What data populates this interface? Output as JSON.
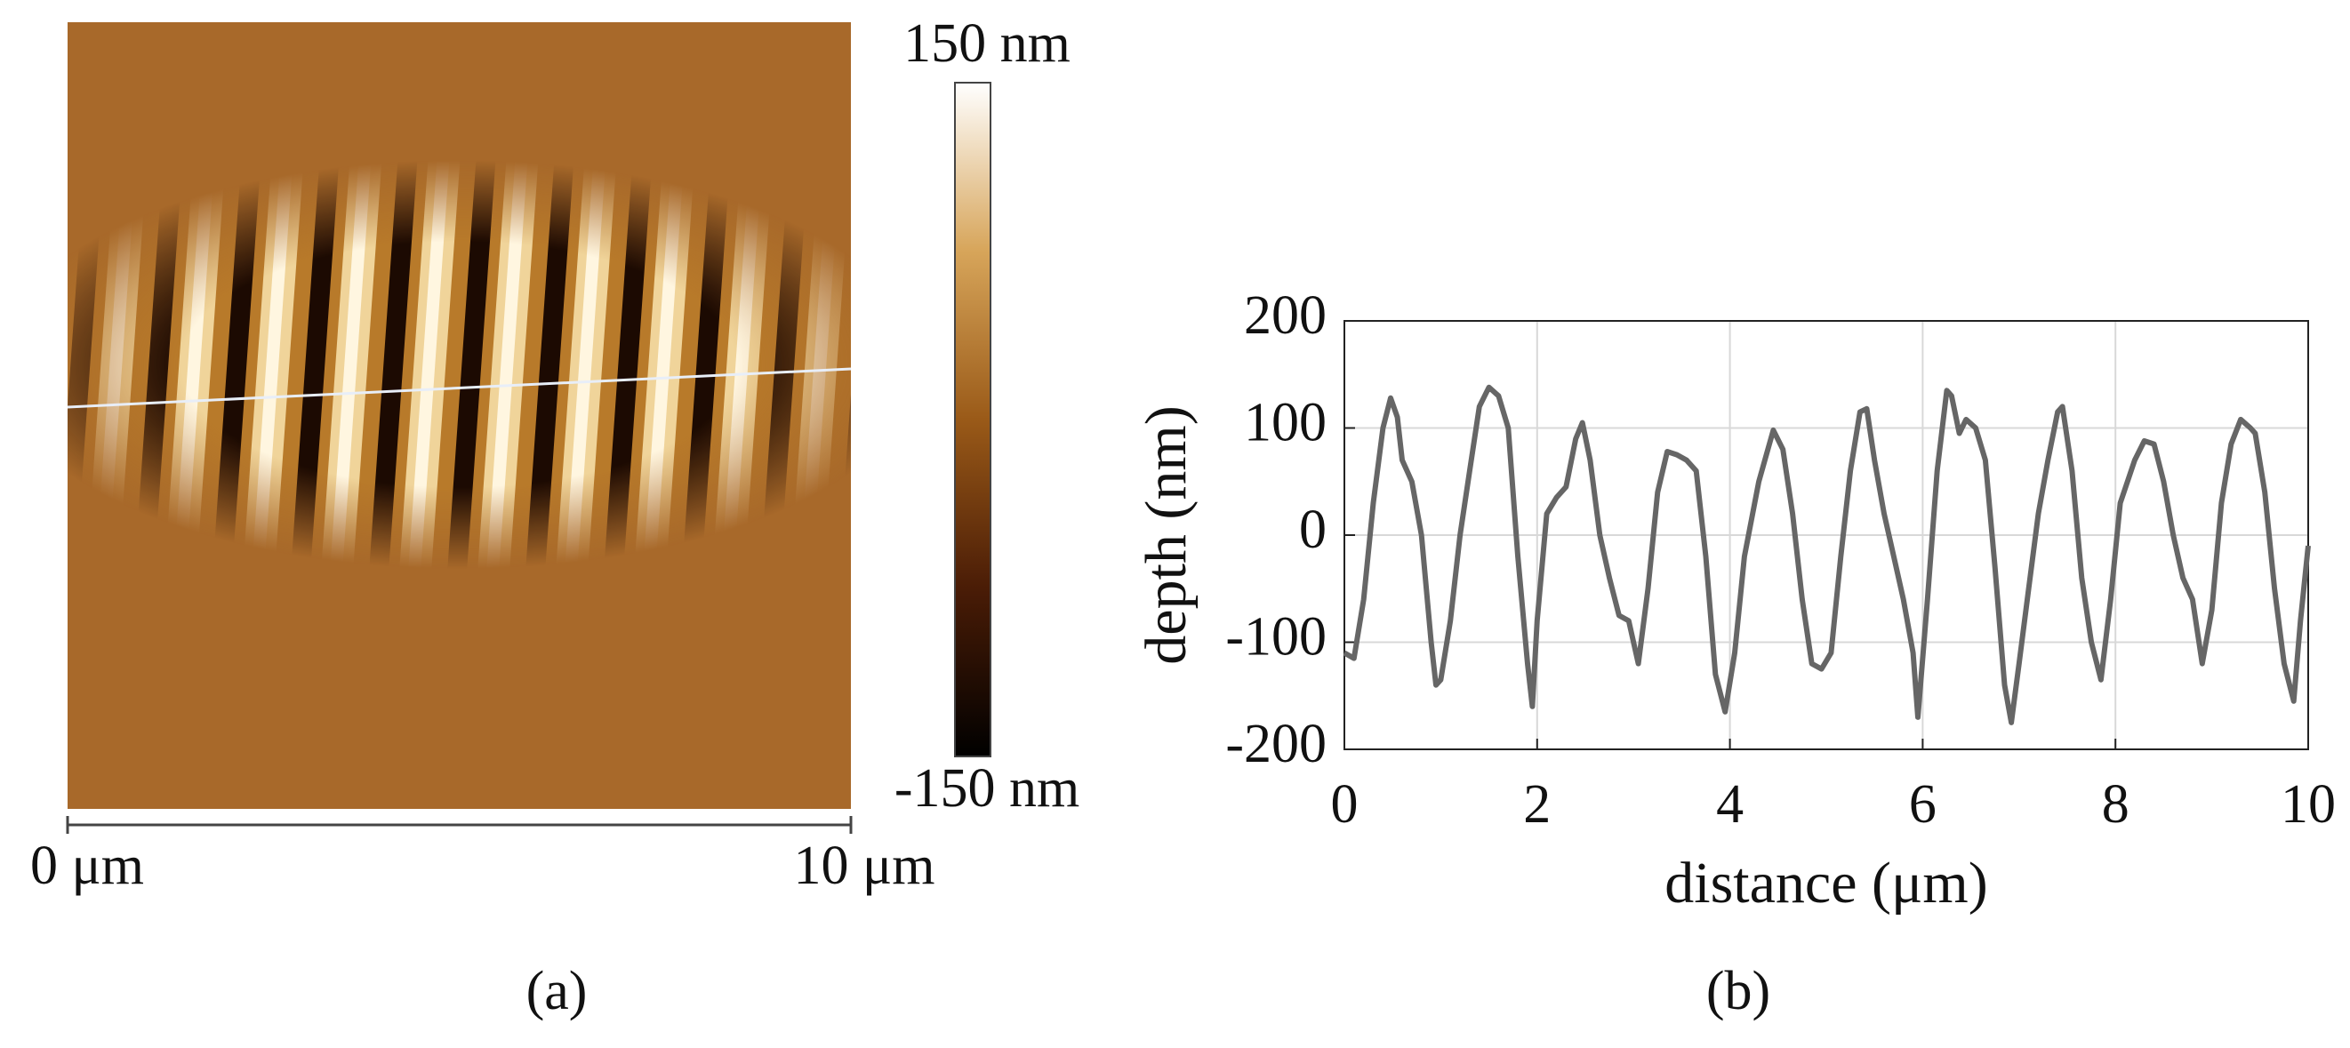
{
  "panel_a": {
    "colorbar_top": "150 nm",
    "colorbar_bottom": "-150 nm",
    "scale_start": "0 μm",
    "scale_end": "10 μm",
    "label": "(a)"
  },
  "chart_data": {
    "type": "line",
    "panel_label": "(b)",
    "xlabel": "distance (μm)",
    "ylabel": "depth (nm)",
    "xlim": [
      0,
      10
    ],
    "ylim": [
      -200,
      200
    ],
    "xticks": [
      0,
      2,
      4,
      6,
      8,
      10
    ],
    "yticks": [
      -200,
      -100,
      0,
      100,
      200
    ],
    "grid": true,
    "x": [
      0,
      0.1,
      0.2,
      0.3,
      0.4,
      0.48,
      0.55,
      0.6,
      0.7,
      0.8,
      0.9,
      0.95,
      1.0,
      1.1,
      1.2,
      1.3,
      1.4,
      1.5,
      1.6,
      1.7,
      1.8,
      1.9,
      1.95,
      2.0,
      2.1,
      2.2,
      2.3,
      2.4,
      2.47,
      2.55,
      2.65,
      2.75,
      2.85,
      2.95,
      3.05,
      3.15,
      3.25,
      3.35,
      3.45,
      3.55,
      3.65,
      3.75,
      3.85,
      3.95,
      4.05,
      4.15,
      4.3,
      4.45,
      4.55,
      4.65,
      4.75,
      4.85,
      4.95,
      5.05,
      5.15,
      5.25,
      5.35,
      5.42,
      5.5,
      5.6,
      5.7,
      5.8,
      5.9,
      5.95,
      6.05,
      6.15,
      6.25,
      6.3,
      6.38,
      6.45,
      6.55,
      6.65,
      6.75,
      6.85,
      6.92,
      7.0,
      7.1,
      7.2,
      7.3,
      7.4,
      7.45,
      7.55,
      7.65,
      7.75,
      7.85,
      7.95,
      8.05,
      8.2,
      8.3,
      8.4,
      8.5,
      8.6,
      8.7,
      8.8,
      8.9,
      9.0,
      9.1,
      9.2,
      9.3,
      9.4,
      9.45,
      9.55,
      9.65,
      9.75,
      9.85,
      9.92,
      10.0
    ],
    "series": [
      {
        "color": "#666666",
        "values": [
          -110,
          -115,
          -60,
          30,
          100,
          128,
          110,
          70,
          50,
          0,
          -100,
          -140,
          -135,
          -80,
          0,
          60,
          120,
          138,
          130,
          100,
          -20,
          -120,
          -160,
          -80,
          20,
          35,
          45,
          90,
          105,
          70,
          0,
          -40,
          -75,
          -80,
          -120,
          -50,
          40,
          78,
          75,
          70,
          60,
          -20,
          -130,
          -165,
          -110,
          -20,
          50,
          98,
          80,
          20,
          -60,
          -120,
          -125,
          -110,
          -20,
          60,
          115,
          118,
          70,
          20,
          -20,
          -60,
          -110,
          -170,
          -60,
          60,
          135,
          130,
          95,
          108,
          100,
          70,
          -30,
          -140,
          -175,
          -120,
          -50,
          20,
          70,
          115,
          120,
          60,
          -40,
          -100,
          -135,
          -60,
          30,
          70,
          88,
          85,
          50,
          0,
          -40,
          -60,
          -120,
          -70,
          30,
          85,
          108,
          100,
          95,
          40,
          -50,
          -120,
          -155,
          -80,
          -10
        ]
      }
    ]
  }
}
